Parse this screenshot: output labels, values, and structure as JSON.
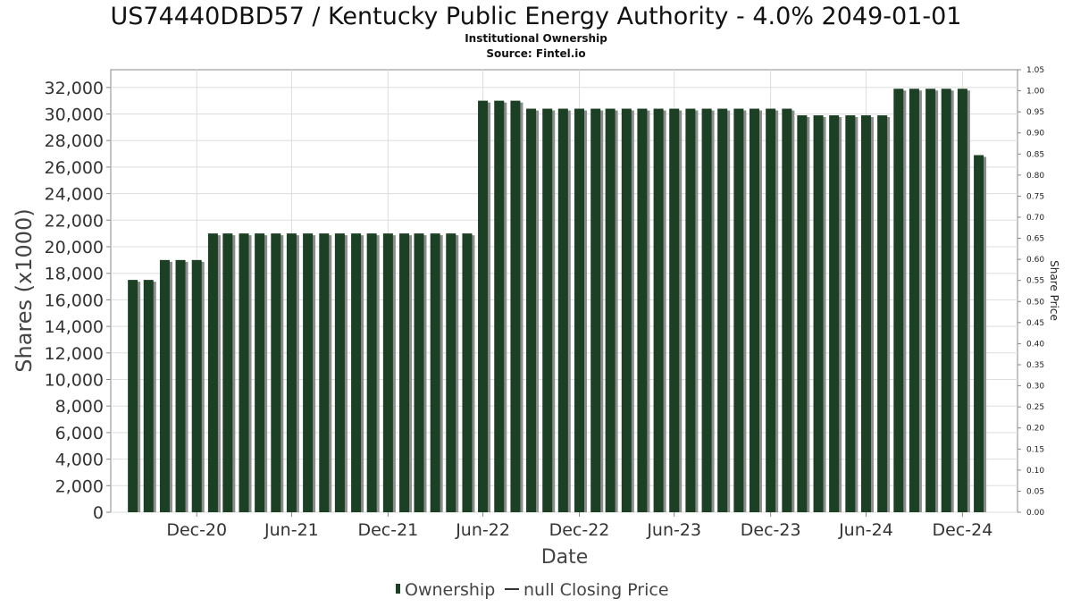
{
  "chart_data": {
    "type": "bar",
    "title": "US74440DBD57 / Kentucky Public Energy Authority - 4.0% 2049-01-01",
    "subtitle": "Institutional Ownership",
    "source": "Source: Fintel.io",
    "xlabel": "Date",
    "ylabel": "Shares (x1000)",
    "y2label": "Share Price",
    "ylim": [
      0,
      33333
    ],
    "y2lim": [
      0,
      1.05
    ],
    "grid": true,
    "x_domain": [
      "2020-07-20",
      "2025-04-15"
    ],
    "x_ticks": [
      {
        "date": "2020-12-31",
        "label": "Dec-20"
      },
      {
        "date": "2021-06-30",
        "label": "Jun-21"
      },
      {
        "date": "2021-12-31",
        "label": "Dec-21"
      },
      {
        "date": "2022-06-30",
        "label": "Jun-22"
      },
      {
        "date": "2022-12-31",
        "label": "Dec-22"
      },
      {
        "date": "2023-06-30",
        "label": "Jun-23"
      },
      {
        "date": "2023-12-31",
        "label": "Dec-23"
      },
      {
        "date": "2024-06-30",
        "label": "Jun-24"
      },
      {
        "date": "2024-12-31",
        "label": "Dec-24"
      }
    ],
    "y_ticks": [
      {
        "value": 0,
        "label": "0"
      },
      {
        "value": 2000,
        "label": "2,000"
      },
      {
        "value": 4000,
        "label": "4,000"
      },
      {
        "value": 6000,
        "label": "6,000"
      },
      {
        "value": 8000,
        "label": "8,000"
      },
      {
        "value": 10000,
        "label": "10,000"
      },
      {
        "value": 12000,
        "label": "12,000"
      },
      {
        "value": 14000,
        "label": "14,000"
      },
      {
        "value": 16000,
        "label": "16,000"
      },
      {
        "value": 18000,
        "label": "18,000"
      },
      {
        "value": 20000,
        "label": "20,000"
      },
      {
        "value": 22000,
        "label": "22,000"
      },
      {
        "value": 24000,
        "label": "24,000"
      },
      {
        "value": 26000,
        "label": "26,000"
      },
      {
        "value": 28000,
        "label": "28,000"
      },
      {
        "value": 30000,
        "label": "30,000"
      },
      {
        "value": 32000,
        "label": "32,000"
      }
    ],
    "y2_ticks": [
      {
        "value": 0.0,
        "label": "0.00"
      },
      {
        "value": 0.05,
        "label": "0.05"
      },
      {
        "value": 0.1,
        "label": "0.10"
      },
      {
        "value": 0.15,
        "label": "0.15"
      },
      {
        "value": 0.2,
        "label": "0.20"
      },
      {
        "value": 0.25,
        "label": "0.25"
      },
      {
        "value": 0.3,
        "label": "0.30"
      },
      {
        "value": 0.35,
        "label": "0.35"
      },
      {
        "value": 0.4,
        "label": "0.40"
      },
      {
        "value": 0.45,
        "label": "0.45"
      },
      {
        "value": 0.5,
        "label": "0.50"
      },
      {
        "value": 0.55,
        "label": "0.55"
      },
      {
        "value": 0.6,
        "label": "0.60"
      },
      {
        "value": 0.65,
        "label": "0.65"
      },
      {
        "value": 0.7,
        "label": "0.70"
      },
      {
        "value": 0.75,
        "label": "0.75"
      },
      {
        "value": 0.8,
        "label": "0.80"
      },
      {
        "value": 0.85,
        "label": "0.85"
      },
      {
        "value": 0.9,
        "label": "0.90"
      },
      {
        "value": 0.95,
        "label": "0.95"
      },
      {
        "value": 1.0,
        "label": "1.00"
      },
      {
        "value": 1.05,
        "label": "1.05"
      }
    ],
    "series": [
      {
        "name": "Ownership",
        "color": "#1b4024",
        "points": [
          {
            "date": "2020-08-31",
            "value": 17500
          },
          {
            "date": "2020-09-30",
            "value": 17500
          },
          {
            "date": "2020-10-31",
            "value": 19000
          },
          {
            "date": "2020-11-30",
            "value": 19000
          },
          {
            "date": "2020-12-31",
            "value": 19000
          },
          {
            "date": "2021-01-31",
            "value": 21000
          },
          {
            "date": "2021-02-28",
            "value": 21000
          },
          {
            "date": "2021-03-31",
            "value": 21000
          },
          {
            "date": "2021-04-30",
            "value": 21000
          },
          {
            "date": "2021-05-31",
            "value": 21000
          },
          {
            "date": "2021-06-30",
            "value": 21000
          },
          {
            "date": "2021-07-31",
            "value": 21000
          },
          {
            "date": "2021-08-31",
            "value": 21000
          },
          {
            "date": "2021-09-30",
            "value": 21000
          },
          {
            "date": "2021-10-31",
            "value": 21000
          },
          {
            "date": "2021-11-30",
            "value": 21000
          },
          {
            "date": "2021-12-31",
            "value": 21000
          },
          {
            "date": "2022-01-31",
            "value": 21000
          },
          {
            "date": "2022-02-28",
            "value": 21000
          },
          {
            "date": "2022-03-31",
            "value": 21000
          },
          {
            "date": "2022-04-30",
            "value": 21000
          },
          {
            "date": "2022-05-31",
            "value": 21000
          },
          {
            "date": "2022-06-30",
            "value": 31000
          },
          {
            "date": "2022-07-31",
            "value": 31000
          },
          {
            "date": "2022-08-31",
            "value": 31000
          },
          {
            "date": "2022-09-30",
            "value": 30400
          },
          {
            "date": "2022-10-31",
            "value": 30400
          },
          {
            "date": "2022-11-30",
            "value": 30400
          },
          {
            "date": "2022-12-31",
            "value": 30400
          },
          {
            "date": "2023-01-31",
            "value": 30400
          },
          {
            "date": "2023-02-28",
            "value": 30400
          },
          {
            "date": "2023-03-31",
            "value": 30400
          },
          {
            "date": "2023-04-30",
            "value": 30400
          },
          {
            "date": "2023-05-31",
            "value": 30400
          },
          {
            "date": "2023-06-30",
            "value": 30400
          },
          {
            "date": "2023-07-31",
            "value": 30400
          },
          {
            "date": "2023-08-31",
            "value": 30400
          },
          {
            "date": "2023-09-30",
            "value": 30400
          },
          {
            "date": "2023-10-31",
            "value": 30400
          },
          {
            "date": "2023-11-30",
            "value": 30400
          },
          {
            "date": "2023-12-31",
            "value": 30400
          },
          {
            "date": "2024-01-31",
            "value": 30400
          },
          {
            "date": "2024-02-29",
            "value": 29900
          },
          {
            "date": "2024-03-31",
            "value": 29900
          },
          {
            "date": "2024-04-30",
            "value": 29900
          },
          {
            "date": "2024-05-31",
            "value": 29900
          },
          {
            "date": "2024-06-30",
            "value": 29900
          },
          {
            "date": "2024-07-31",
            "value": 29900
          },
          {
            "date": "2024-08-31",
            "value": 31900
          },
          {
            "date": "2024-09-30",
            "value": 31900
          },
          {
            "date": "2024-10-31",
            "value": 31900
          },
          {
            "date": "2024-11-30",
            "value": 31900
          },
          {
            "date": "2024-12-31",
            "value": 31900
          },
          {
            "date": "2025-01-31",
            "value": 26900
          }
        ]
      },
      {
        "name": "null Closing Price",
        "color": "#333333",
        "points": []
      }
    ],
    "legend": {
      "position": "bottom",
      "items": [
        {
          "label": "Ownership",
          "marker": "bar",
          "color": "#1b4024"
        },
        {
          "label": "null Closing Price",
          "marker": "line",
          "color": "#333333"
        }
      ]
    }
  }
}
